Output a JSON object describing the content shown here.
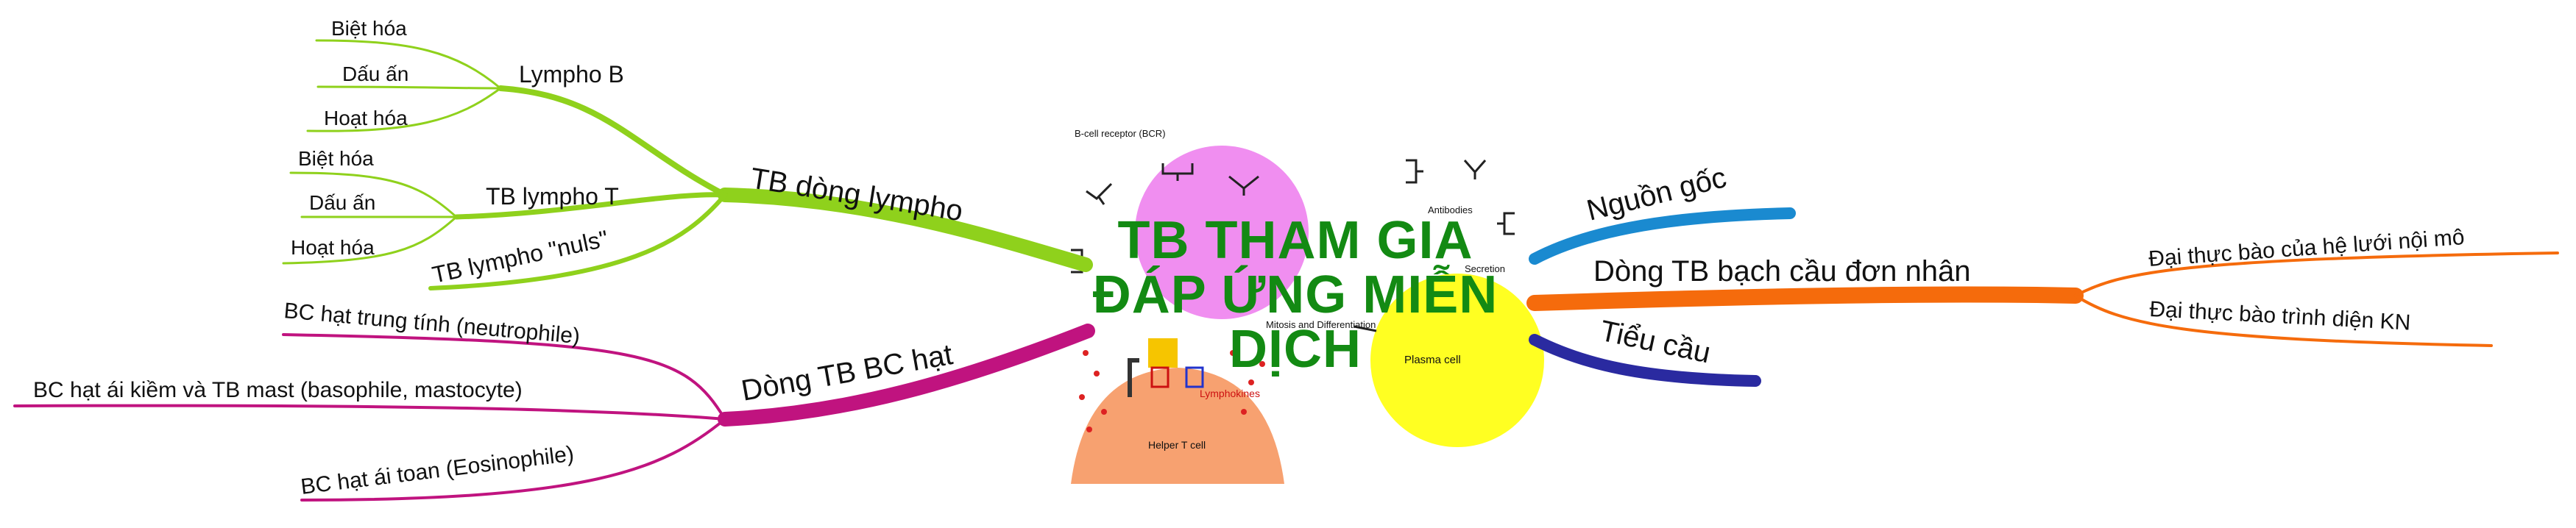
{
  "center": {
    "title": "TB THAM GIA ĐÁP ỨNG MIỄN DỊCH",
    "title_line_1": "TB THAM GIA",
    "title_line_2": "ĐÁP ỨNG MIỄN",
    "title_line_3": "DỊCH",
    "title_color": "#138a13",
    "image_labels": {
      "bcr": "B-cell receptor (BCR)",
      "antibodies": "Antibodies",
      "secretion": "Secretion",
      "mitosis": "Mitosis and Differentiation",
      "lymphokines": "Lymphokines",
      "plasma": "Plasma cell",
      "helper": "Helper T cell"
    },
    "image_colors": {
      "b_cell": "#f08ef0",
      "plasma_cell": "#ffff22",
      "helper_t_cell": "#f7a170"
    }
  },
  "branches": {
    "lympho": {
      "label": "TB dòng lympho",
      "color": "#8fd11c",
      "children": [
        {
          "label": "Lympho B",
          "children": [
            "Biệt hóa",
            "Dấu ấn",
            "Hoạt hóa"
          ]
        },
        {
          "label": "TB lympho T",
          "children": [
            "Biệt hóa",
            "Dấu ấn",
            "Hoạt hóa"
          ]
        },
        {
          "label": "TB lympho \"nuls\"",
          "children": []
        }
      ]
    },
    "bc_hat": {
      "label": "Dòng TB BC hạt",
      "color": "#c0137f",
      "children": [
        "BC hạt trung tính (neutrophile)",
        "BC hạt ái kiềm và TB mast (basophile, mastocyte)",
        "BC hạt ái toan (Eosinophile)"
      ]
    },
    "nguon_goc": {
      "label": "Nguồn gốc",
      "color": "#1a8ad0"
    },
    "don_nhan": {
      "label": "Dòng TB bạch cầu đơn nhân",
      "color": "#f56b0c",
      "children": [
        "Đại thực bào của hệ lưới nội mô",
        "Đại thực bào trình diện KN"
      ]
    },
    "tieu_cau": {
      "label": "Tiểu cầu",
      "color": "#2a2aa0"
    }
  }
}
